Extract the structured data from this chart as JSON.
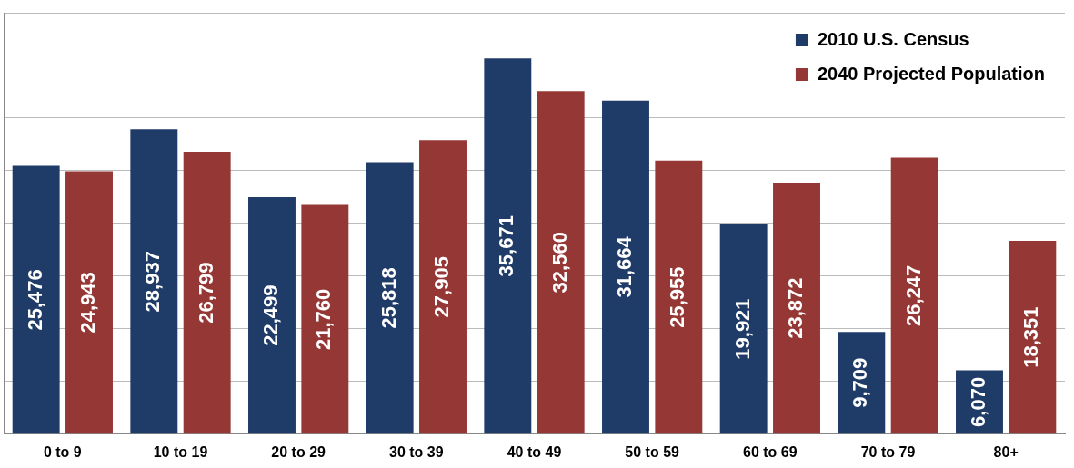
{
  "chart_data": {
    "type": "bar",
    "categories": [
      "0 to 9",
      "10 to 19",
      "20 to 29",
      "30 to 39",
      "40 to 49",
      "50 to 59",
      "60 to 69",
      "70 to 79",
      "80+"
    ],
    "series": [
      {
        "name": "2010 U.S. Census",
        "color": "#1f3b68",
        "values": [
          25476,
          28937,
          22499,
          25818,
          35671,
          31664,
          19921,
          9709,
          6070
        ],
        "value_labels": [
          "25,476",
          "28,937",
          "22,499",
          "25,818",
          "35,671",
          "31,664",
          "19,921",
          "9,709",
          "6,070"
        ]
      },
      {
        "name": "2040 Projected Population",
        "color": "#953735",
        "values": [
          24943,
          26799,
          21760,
          27905,
          32560,
          25955,
          23872,
          26247,
          18351
        ],
        "value_labels": [
          "24,943",
          "26,799",
          "21,760",
          "27,905",
          "32,560",
          "25,955",
          "23,872",
          "26,247",
          "18,351"
        ]
      }
    ],
    "tick_labels": "x",
    "grid": "y",
    "legend": "top right"
  }
}
